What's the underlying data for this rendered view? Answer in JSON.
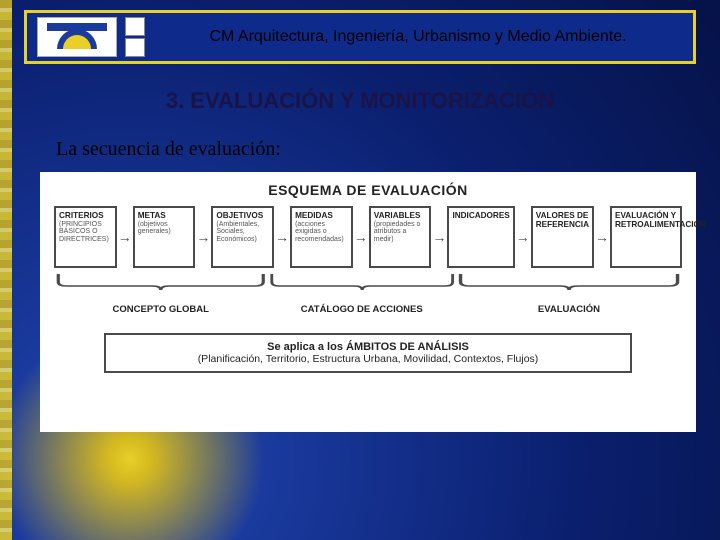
{
  "header": {
    "title": "CM Arquitectura, Ingeniería, Urbanismo y Medio Ambiente.",
    "border_color": "#e8d028",
    "bg_color": "#0e2a8a"
  },
  "section_title": "3. EVALUACIÓN Y MONITORIZACIÓN",
  "intro": "La secuencia de evaluación:",
  "diagram": {
    "type": "flowchart",
    "title": "ESQUEMA DE EVALUACIÓN",
    "background_color": "#ffffff",
    "box_border_color": "#4a4a4a",
    "arrow_glyph": "→",
    "nodes": [
      {
        "title": "CRITERIOS",
        "sub": "(PRINCIPIOS BÁSICOS O DIRECTRICES)"
      },
      {
        "title": "METAS",
        "sub": "(objetivos generales)"
      },
      {
        "title": "OBJETIVOS",
        "sub": "(Ambientales, Sociales, Económicos)"
      },
      {
        "title": "MEDIDAS",
        "sub": "(acciones exigidas o recomendadas)"
      },
      {
        "title": "VARIABLES",
        "sub": "(propiedades o atributos a medir)"
      },
      {
        "title": "INDICADORES",
        "sub": ""
      },
      {
        "title": "VALORES DE REFERENCIA",
        "sub": ""
      },
      {
        "title": "EVALUACIÓN Y RETROALIMENTACIÓN",
        "sub": ""
      }
    ],
    "groups": [
      {
        "label": "CONCEPTO GLOBAL",
        "span_start": 0,
        "span_end": 2,
        "width_pct": 34
      },
      {
        "label": "CATÁLOGO DE ACCIONES",
        "span_start": 3,
        "span_end": 4,
        "width_pct": 30
      },
      {
        "label": "EVALUACIÓN",
        "span_start": 5,
        "span_end": 7,
        "width_pct": 36
      }
    ],
    "footer": {
      "line1": "Se aplica a los ÁMBITOS DE ANÁLISIS",
      "line2": "(Planificación, Territorio, Estructura Urbana, Movilidad, Contextos, Flujos)"
    },
    "title_fontsize": 14,
    "box_title_fontsize": 8.2,
    "box_sub_fontsize": 7,
    "group_label_fontsize": 9.5,
    "footer_fontsize": 11
  },
  "palette": {
    "bg_gradient_center": "#e8d028",
    "bg_gradient_mid": "#1a3a9e",
    "bg_gradient_outer": "#061248",
    "section_title_color": "#1a1348"
  }
}
